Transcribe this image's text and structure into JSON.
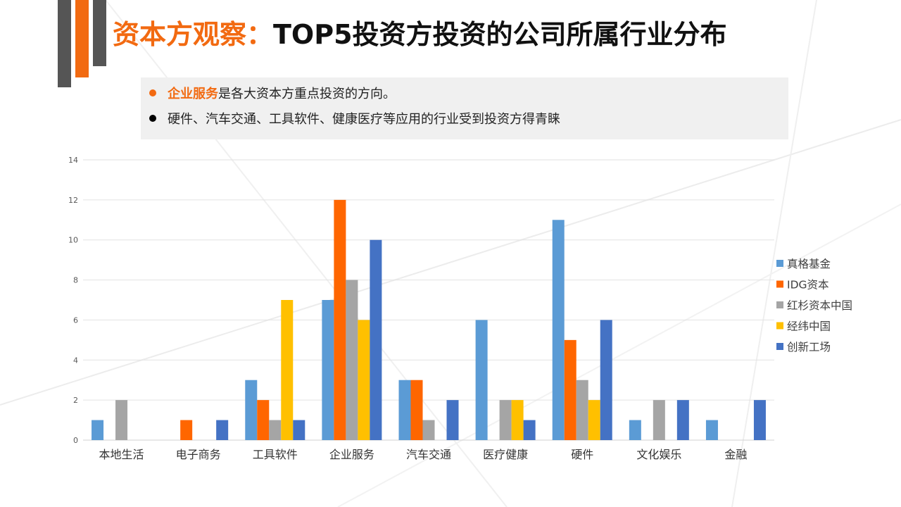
{
  "title": {
    "accent": "资本方观察：",
    "main": "TOP5投资方投资的公司所属行业分布"
  },
  "callout": {
    "bullet1_highlight": "企业服务",
    "bullet1_rest": "是各大资本方重点投资的方向。",
    "bullet2": "硬件、汽车交通、工具软件、健康医疗等应用的行业受到投资方得青睐"
  },
  "colors": {
    "accent": "#f26a11",
    "dark_bar": "#555555",
    "series": [
      "#5b9bd5",
      "#ff6600",
      "#a5a5a5",
      "#ffc000",
      "#4472c4"
    ]
  },
  "chart_data": {
    "type": "bar",
    "title": "",
    "xlabel": "",
    "ylabel": "",
    "ylim": [
      0,
      14
    ],
    "yticks": [
      0,
      2,
      4,
      6,
      8,
      10,
      12,
      14
    ],
    "grid": true,
    "legend_position": "right",
    "categories": [
      "本地生活",
      "电子商务",
      "工具软件",
      "企业服务",
      "汽车交通",
      "医疗健康",
      "硬件",
      "文化娱乐",
      "金融"
    ],
    "series": [
      {
        "name": "真格基金",
        "values": [
          1,
          0,
          3,
          7,
          3,
          6,
          11,
          1,
          1
        ]
      },
      {
        "name": "IDG资本",
        "values": [
          0,
          1,
          2,
          12,
          3,
          0,
          5,
          0,
          0
        ]
      },
      {
        "name": "红杉资本中国",
        "values": [
          2,
          0,
          1,
          8,
          1,
          2,
          3,
          2,
          0
        ]
      },
      {
        "name": "经纬中国",
        "values": [
          0,
          0,
          7,
          6,
          0,
          2,
          2,
          0,
          0
        ]
      },
      {
        "name": "创新工场",
        "values": [
          0,
          1,
          1,
          10,
          2,
          1,
          6,
          2,
          2
        ]
      }
    ]
  }
}
